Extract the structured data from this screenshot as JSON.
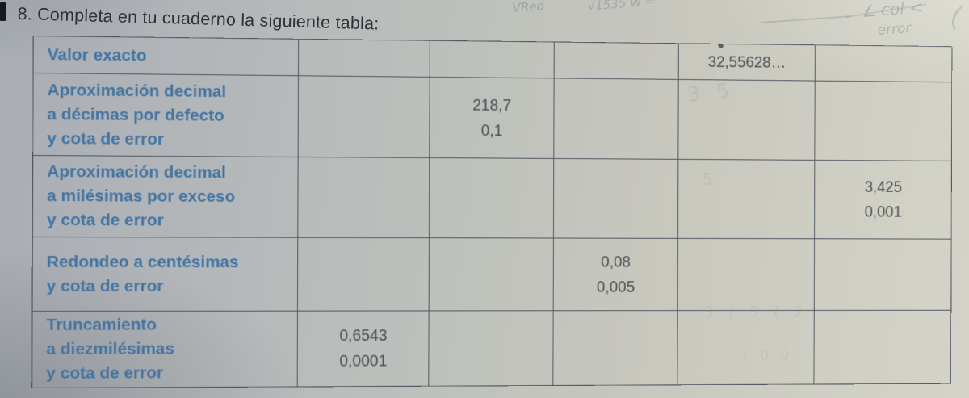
{
  "header": {
    "title": "8. Completa en tu cuaderno la siguiente tabla:"
  },
  "table": {
    "rows": [
      {
        "label": "Valor exacto",
        "cells": [
          "",
          "",
          "",
          "32,55628…",
          ""
        ]
      },
      {
        "label": "Aproximación decimal\na décimas por defecto\ny cota de error",
        "cells": [
          "",
          "218,7\n0,1",
          "",
          "",
          ""
        ]
      },
      {
        "label": "Aproximación decimal\na milésimas por exceso\ny cota de error",
        "cells": [
          "",
          "",
          "",
          "",
          "3,425\n0,001"
        ]
      },
      {
        "label": "Redondeo a centésimas\ny cota de error",
        "cells": [
          "",
          "",
          "0,08\n0,005",
          "",
          ""
        ]
      },
      {
        "label": "Truncamiento\na diezmilésimas\ny cota de error",
        "cells": [
          "0,6543\n0,0001",
          "",
          "",
          "",
          ""
        ]
      }
    ]
  },
  "handwriting": {
    "annotation_left": "VRed",
    "annotation_mid": "√1535 W =",
    "annotation_right_1": "∠ col <",
    "annotation_right_2": "error",
    "paren": "("
  },
  "ghost_marks": {
    "mark_1": "3 5",
    "mark_2": "5",
    "mark_3": "3 ( 5 ( 2",
    "mark_4": "( 0 0"
  },
  "colors": {
    "label_blue": "#4273a1",
    "value_gray": "#4b4f54",
    "border": "#4e555e",
    "paper_left": "#a9adb4",
    "paper_right": "#d5d3c9",
    "title_ink": "#2e3236"
  }
}
